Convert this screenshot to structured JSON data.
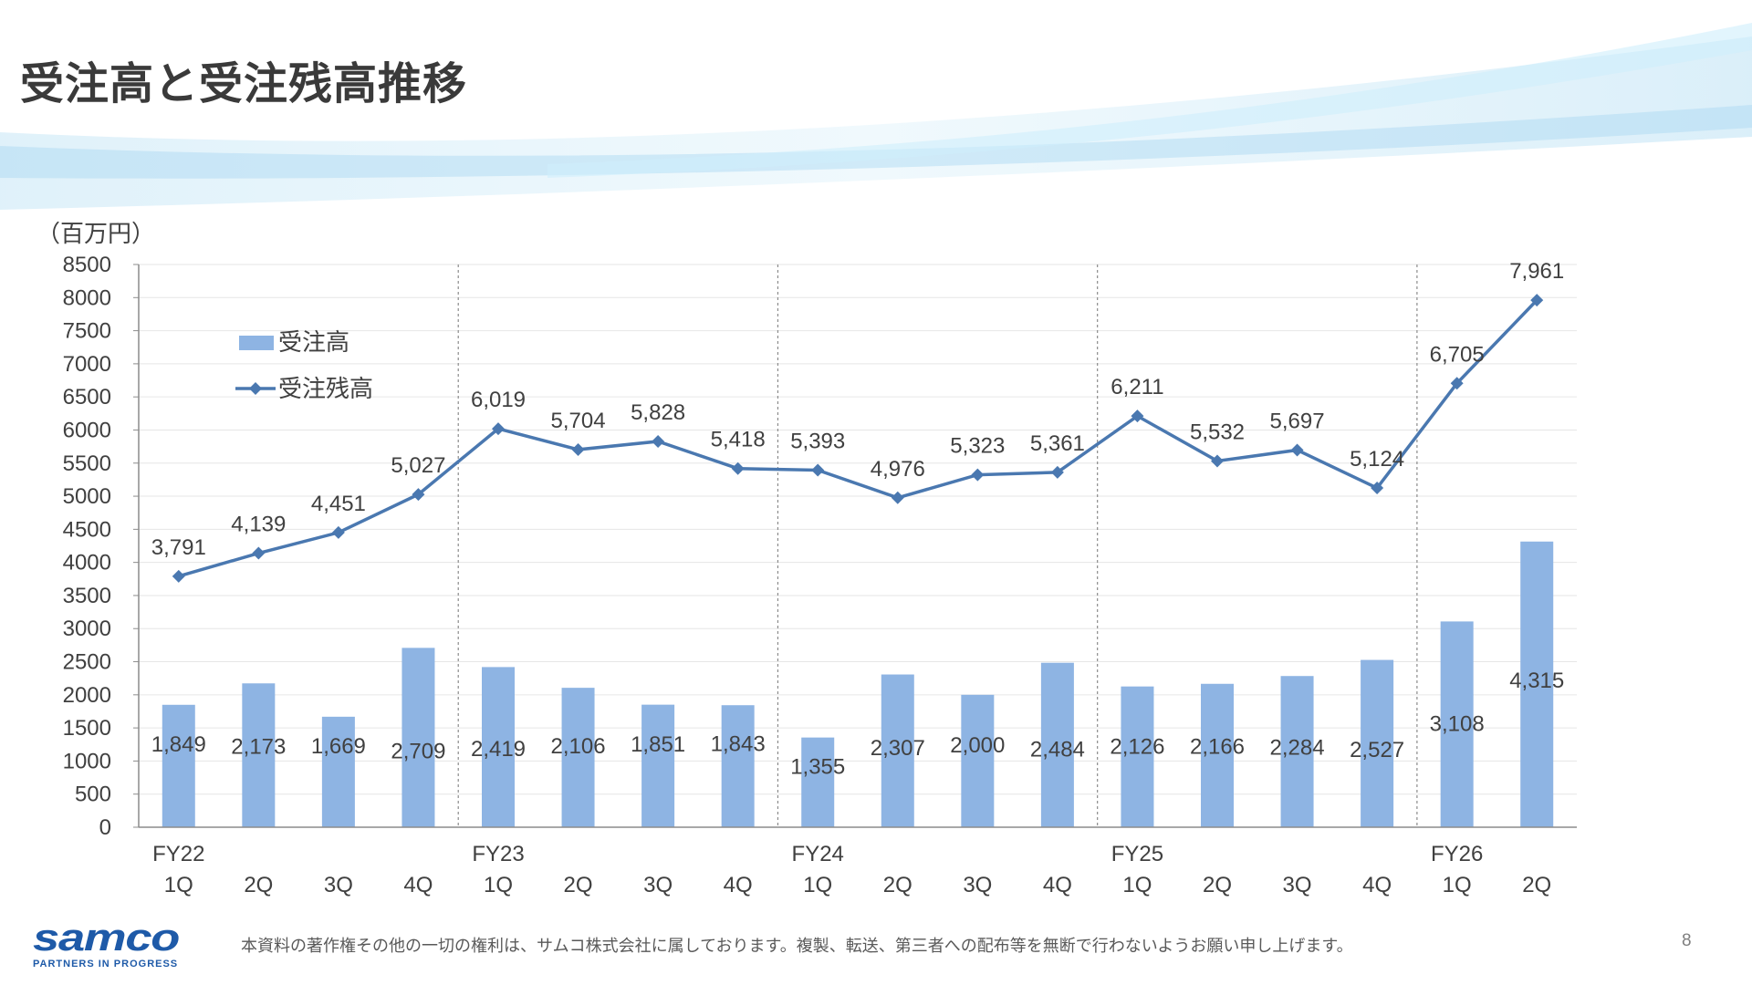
{
  "title": "受注高と受注残高推移",
  "footer": {
    "logo_text": "samco",
    "logo_tagline": "PARTNERS IN PROGRESS",
    "note": "本資料の著作権その他の一切の権利は、サムコ株式会社に属しております。複製、転送、第三者への配布等を無断で行わないようお願い申し上げます。",
    "page_number": "8"
  },
  "colors": {
    "bar": "#8eb4e3",
    "line": "#4a78b0",
    "axis": "#8c8c8c",
    "grid": "#e6e6e6",
    "text": "#404040"
  },
  "chart_data": {
    "type": "bar+line",
    "unit": "（百万円）",
    "ylim": [
      0,
      8500
    ],
    "yticks": [
      0,
      500,
      1000,
      1500,
      2000,
      2500,
      3000,
      3500,
      4000,
      4500,
      5000,
      5500,
      6000,
      6500,
      7000,
      7500,
      8000,
      8500
    ],
    "grid": true,
    "legend_position": "top-left",
    "categories": [
      "1Q",
      "2Q",
      "3Q",
      "4Q",
      "1Q",
      "2Q",
      "3Q",
      "4Q",
      "1Q",
      "2Q",
      "3Q",
      "4Q",
      "1Q",
      "2Q",
      "3Q",
      "4Q",
      "1Q",
      "2Q"
    ],
    "fiscal_years": [
      "FY22",
      "",
      "",
      "",
      "FY23",
      "",
      "",
      "",
      "FY24",
      "",
      "",
      "",
      "FY25",
      "",
      "",
      "",
      "FY26",
      ""
    ],
    "series": [
      {
        "name": "受注高",
        "type": "bar",
        "values": [
          1849,
          2173,
          1669,
          2709,
          2419,
          2106,
          1851,
          1843,
          1355,
          2307,
          2000,
          2484,
          2126,
          2166,
          2284,
          2527,
          3108,
          4315
        ],
        "labels": [
          "1,849",
          "2,173",
          "1,669",
          "2,709",
          "2,419",
          "2,106",
          "1,851",
          "1,843",
          "1,355",
          "2,307",
          "2,000",
          "2,484",
          "2,126",
          "2,166",
          "2,284",
          "2,527",
          "3,108",
          "4,315"
        ]
      },
      {
        "name": "受注残高",
        "type": "line",
        "values": [
          3791,
          4139,
          4451,
          5027,
          6019,
          5704,
          5828,
          5418,
          5393,
          4976,
          5323,
          5361,
          6211,
          5532,
          5697,
          5124,
          6705,
          7961
        ],
        "labels": [
          "3,791",
          "4,139",
          "4,451",
          "5,027",
          "6,019",
          "5,704",
          "5,828",
          "5,418",
          "5,393",
          "4,976",
          "5,323",
          "5,361",
          "6,211",
          "5,532",
          "5,697",
          "5,124",
          "6,705",
          "7,961"
        ]
      }
    ]
  }
}
